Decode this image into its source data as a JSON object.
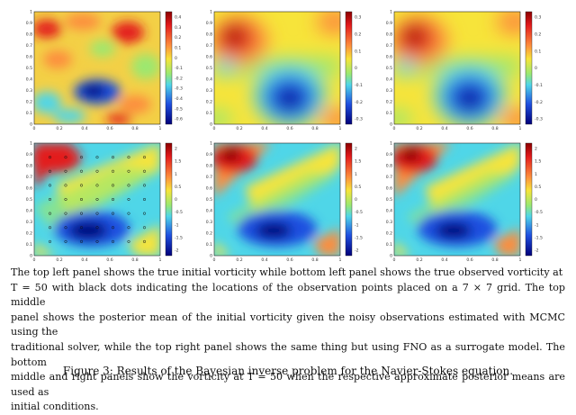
{
  "figure": {
    "label": "Figure 3:",
    "caption": "Results of the Bayesian inverse problem for the Navier-Stokes equation."
  },
  "body_text": [
    "The top left panel shows the true initial vorticity while bottom left panel shows the true observed vorticity at",
    "T = 50 with black dots indicating the locations of the observation points placed on a 7 × 7 grid. The top middle",
    "panel shows the posterior mean of the initial vorticity given the noisy observations estimated with MCMC using the",
    "traditional solver, while the top right panel shows the same thing but using FNO as a surrogate model. The bottom",
    "middle and right panels show the vorticity at T = 50 when the respective approximate posterior means are used as",
    "initial conditions."
  ],
  "axis_ticks": [
    "0",
    "0.1",
    "0.2",
    "0.3",
    "0.4",
    "0.5",
    "0.6",
    "0.7",
    "0.8",
    "0.9",
    "1"
  ],
  "x_ticks": [
    "0",
    "0.2",
    "0.4",
    "0.6",
    "0.8",
    "1"
  ],
  "colors": {
    "dark_red": "#8b0000",
    "red": "#e31a1c",
    "yellow": "#f7e43a",
    "cyan": "#4fd6e8",
    "blue": "#1f4fe0",
    "dark_blue": "#00007a"
  },
  "panels": [
    {
      "id": "top-left",
      "colorbar_ticks": [
        "0.4",
        "0.3",
        "0.2",
        "0.1",
        "0",
        "-0.1",
        "-0.2",
        "-0.3",
        "-0.4",
        "-0.5",
        "-0.6"
      ]
    },
    {
      "id": "top-middle",
      "colorbar_ticks": [
        "0.3",
        "0.2",
        "0.1",
        "0",
        "-0.1",
        "-0.2",
        "-0.3"
      ]
    },
    {
      "id": "top-right",
      "colorbar_ticks": [
        "0.3",
        "0.2",
        "0.1",
        "0",
        "-0.1",
        "-0.2",
        "-0.3"
      ]
    },
    {
      "id": "bottom-left",
      "colorbar_ticks": [
        "2",
        "1.5",
        "1",
        "0.5",
        "0",
        "-0.5",
        "-1",
        "-1.5",
        "-2"
      ]
    },
    {
      "id": "bottom-middle",
      "colorbar_ticks": [
        "2",
        "1.5",
        "1",
        "0.5",
        "0",
        "-0.5",
        "-1",
        "-1.5",
        "-2"
      ]
    },
    {
      "id": "bottom-right",
      "colorbar_ticks": [
        "2",
        "1.5",
        "1",
        "0.5",
        "0",
        "-0.5",
        "-1",
        "-1.5",
        "-2"
      ]
    }
  ],
  "observation_grid": {
    "rows": 7,
    "cols": 7
  }
}
